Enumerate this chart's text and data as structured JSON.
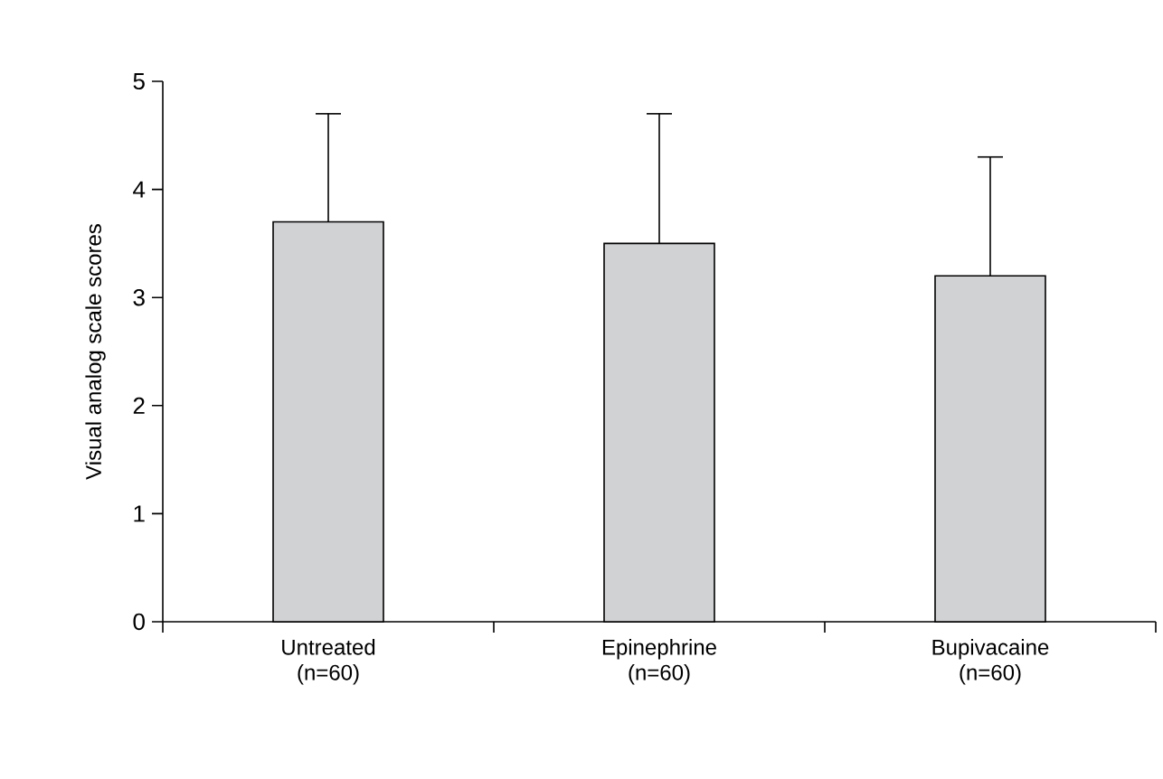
{
  "chart_data": {
    "type": "bar",
    "ylabel": "Visual analog scale scores",
    "categories": [
      "Untreated (n=60)",
      "Epinephrine (n=60)",
      "Bupivacaine (n=60)"
    ],
    "values": [
      3.7,
      3.5,
      3.2
    ],
    "errors": [
      [
        3.7,
        4.7
      ],
      [
        3.5,
        4.7
      ],
      [
        3.2,
        4.3
      ]
    ],
    "color": "#d1d2d4",
    "ylim": [
      0,
      5
    ],
    "yticks": [
      0,
      1,
      2,
      3,
      4,
      5
    ],
    "grid": false
  }
}
